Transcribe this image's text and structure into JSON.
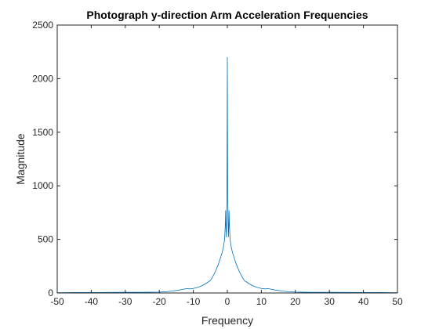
{
  "chart_data": {
    "type": "line",
    "title": "Photograph y-direction Arm Acceleration Frequencies",
    "xlabel": "Frequency",
    "ylabel": "Magnitude",
    "xlim": [
      -50,
      50
    ],
    "ylim": [
      0,
      2500
    ],
    "xticks": [
      -50,
      -40,
      -30,
      -20,
      -10,
      0,
      10,
      20,
      30,
      40,
      50
    ],
    "yticks": [
      0,
      500,
      1000,
      1500,
      2000,
      2500
    ],
    "grid": false,
    "box": true,
    "color": "#0072BD",
    "series": [
      {
        "x": [
          -50,
          -45,
          -40,
          -35,
          -30,
          -25,
          -20,
          -18,
          -16,
          -14,
          -13,
          -12,
          -11,
          -10,
          -9,
          -8,
          -7,
          -6,
          -5,
          -4.5,
          -4,
          -3.5,
          -3,
          -2.5,
          -2,
          -1.5,
          -1.2,
          -1,
          -0.8,
          -0.6,
          -0.5,
          -0.4,
          -0.3,
          -0.2,
          -0.1,
          0,
          0.1,
          0.2,
          0.3,
          0.4,
          0.5,
          0.6,
          0.8,
          1,
          1.2,
          1.5,
          2,
          2.5,
          3,
          3.5,
          4,
          4.5,
          5,
          6,
          7,
          8,
          9,
          10,
          11,
          12,
          13,
          14,
          16,
          18,
          20,
          25,
          30,
          35,
          40,
          45,
          50
        ],
        "y": [
          3,
          4,
          4,
          5,
          6,
          6,
          8,
          12,
          18,
          28,
          35,
          40,
          38,
          42,
          50,
          60,
          75,
          95,
          115,
          140,
          170,
          200,
          240,
          280,
          330,
          380,
          420,
          460,
          500,
          640,
          770,
          600,
          520,
          700,
          1000,
          2200,
          1000,
          700,
          520,
          600,
          770,
          640,
          500,
          460,
          420,
          380,
          330,
          280,
          240,
          200,
          170,
          140,
          115,
          95,
          75,
          60,
          50,
          42,
          38,
          40,
          35,
          28,
          18,
          12,
          8,
          6,
          6,
          5,
          4,
          4,
          3
        ]
      }
    ]
  }
}
